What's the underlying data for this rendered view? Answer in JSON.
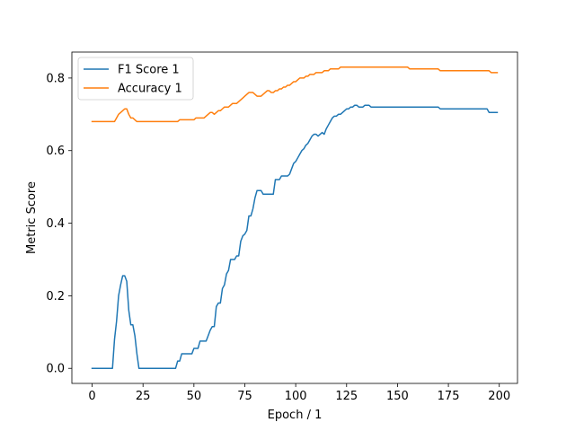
{
  "chart_data": {
    "type": "line",
    "title": "",
    "xlabel": "Epoch / 1",
    "ylabel": "Metric Score",
    "xlim": [
      -9.95,
      208.95
    ],
    "ylim": [
      -0.0415,
      0.8715
    ],
    "xticks": [
      0,
      25,
      50,
      75,
      100,
      125,
      150,
      175,
      200
    ],
    "yticks": [
      0.0,
      0.2,
      0.4,
      0.6,
      0.8
    ],
    "xtick_labels": [
      "0",
      "25",
      "50",
      "75",
      "100",
      "125",
      "150",
      "175",
      "200"
    ],
    "ytick_labels": [
      "0.0",
      "0.2",
      "0.4",
      "0.6",
      "0.8"
    ],
    "grid": false,
    "legend_position": "upper-left",
    "series": [
      {
        "name": "F1 Score 1",
        "color": "#1f77b4",
        "points": [
          [
            0,
            0.0
          ],
          [
            10,
            0.0
          ],
          [
            11,
            0.08
          ],
          [
            12,
            0.13
          ],
          [
            13,
            0.2
          ],
          [
            14,
            0.23
          ],
          [
            15,
            0.255
          ],
          [
            16,
            0.255
          ],
          [
            17,
            0.24
          ],
          [
            18,
            0.16
          ],
          [
            19,
            0.12
          ],
          [
            20,
            0.12
          ],
          [
            21,
            0.09
          ],
          [
            22,
            0.04
          ],
          [
            23,
            0.0
          ],
          [
            24,
            0.0
          ],
          [
            41,
            0.0
          ],
          [
            42,
            0.02
          ],
          [
            43,
            0.02
          ],
          [
            44,
            0.04
          ],
          [
            49,
            0.04
          ],
          [
            50,
            0.055
          ],
          [
            52,
            0.055
          ],
          [
            53,
            0.075
          ],
          [
            56,
            0.075
          ],
          [
            57,
            0.09
          ],
          [
            58,
            0.105
          ],
          [
            59,
            0.115
          ],
          [
            60,
            0.115
          ],
          [
            61,
            0.17
          ],
          [
            62,
            0.18
          ],
          [
            63,
            0.18
          ],
          [
            64,
            0.22
          ],
          [
            65,
            0.23
          ],
          [
            66,
            0.26
          ],
          [
            67,
            0.27
          ],
          [
            68,
            0.3
          ],
          [
            70,
            0.3
          ],
          [
            71,
            0.31
          ],
          [
            72,
            0.31
          ],
          [
            73,
            0.35
          ],
          [
            74,
            0.365
          ],
          [
            75,
            0.37
          ],
          [
            76,
            0.38
          ],
          [
            77,
            0.42
          ],
          [
            78,
            0.42
          ],
          [
            79,
            0.44
          ],
          [
            80,
            0.47
          ],
          [
            81,
            0.49
          ],
          [
            83,
            0.49
          ],
          [
            84,
            0.48
          ],
          [
            89,
            0.48
          ],
          [
            90,
            0.52
          ],
          [
            92,
            0.52
          ],
          [
            93,
            0.53
          ],
          [
            95,
            0.53
          ],
          [
            96,
            0.53
          ],
          [
            97,
            0.535
          ],
          [
            98,
            0.55
          ],
          [
            99,
            0.565
          ],
          [
            100,
            0.57
          ],
          [
            101,
            0.58
          ],
          [
            102,
            0.59
          ],
          [
            103,
            0.6
          ],
          [
            104,
            0.605
          ],
          [
            105,
            0.615
          ],
          [
            106,
            0.62
          ],
          [
            107,
            0.63
          ],
          [
            108,
            0.64
          ],
          [
            109,
            0.645
          ],
          [
            110,
            0.645
          ],
          [
            111,
            0.64
          ],
          [
            112,
            0.645
          ],
          [
            113,
            0.65
          ],
          [
            114,
            0.645
          ],
          [
            115,
            0.66
          ],
          [
            116,
            0.67
          ],
          [
            117,
            0.68
          ],
          [
            118,
            0.69
          ],
          [
            119,
            0.695
          ],
          [
            120,
            0.695
          ],
          [
            121,
            0.7
          ],
          [
            122,
            0.7
          ],
          [
            123,
            0.705
          ],
          [
            124,
            0.71
          ],
          [
            125,
            0.715
          ],
          [
            126,
            0.715
          ],
          [
            127,
            0.72
          ],
          [
            128,
            0.72
          ],
          [
            129,
            0.725
          ],
          [
            130,
            0.725
          ],
          [
            131,
            0.72
          ],
          [
            133,
            0.72
          ],
          [
            134,
            0.725
          ],
          [
            136,
            0.725
          ],
          [
            137,
            0.72
          ],
          [
            170,
            0.72
          ],
          [
            171,
            0.715
          ],
          [
            194,
            0.715
          ],
          [
            195,
            0.705
          ],
          [
            199,
            0.705
          ]
        ]
      },
      {
        "name": "Accuracy 1",
        "color": "#ff7f0e",
        "points": [
          [
            0,
            0.68
          ],
          [
            10,
            0.68
          ],
          [
            11,
            0.68
          ],
          [
            12,
            0.69
          ],
          [
            13,
            0.7
          ],
          [
            14,
            0.705
          ],
          [
            15,
            0.71
          ],
          [
            16,
            0.715
          ],
          [
            17,
            0.715
          ],
          [
            18,
            0.7
          ],
          [
            19,
            0.69
          ],
          [
            20,
            0.69
          ],
          [
            21,
            0.685
          ],
          [
            22,
            0.68
          ],
          [
            41,
            0.68
          ],
          [
            42,
            0.68
          ],
          [
            43,
            0.685
          ],
          [
            50,
            0.685
          ],
          [
            51,
            0.69
          ],
          [
            52,
            0.69
          ],
          [
            53,
            0.69
          ],
          [
            54,
            0.69
          ],
          [
            55,
            0.69
          ],
          [
            56,
            0.695
          ],
          [
            57,
            0.7
          ],
          [
            58,
            0.705
          ],
          [
            59,
            0.705
          ],
          [
            60,
            0.7
          ],
          [
            61,
            0.705
          ],
          [
            62,
            0.71
          ],
          [
            63,
            0.71
          ],
          [
            64,
            0.715
          ],
          [
            65,
            0.72
          ],
          [
            66,
            0.72
          ],
          [
            67,
            0.72
          ],
          [
            68,
            0.725
          ],
          [
            69,
            0.73
          ],
          [
            70,
            0.73
          ],
          [
            71,
            0.73
          ],
          [
            72,
            0.735
          ],
          [
            73,
            0.74
          ],
          [
            74,
            0.745
          ],
          [
            75,
            0.75
          ],
          [
            76,
            0.755
          ],
          [
            77,
            0.76
          ],
          [
            78,
            0.76
          ],
          [
            79,
            0.76
          ],
          [
            80,
            0.755
          ],
          [
            81,
            0.75
          ],
          [
            82,
            0.75
          ],
          [
            83,
            0.75
          ],
          [
            84,
            0.755
          ],
          [
            85,
            0.76
          ],
          [
            86,
            0.765
          ],
          [
            87,
            0.765
          ],
          [
            88,
            0.76
          ],
          [
            89,
            0.76
          ],
          [
            90,
            0.765
          ],
          [
            91,
            0.765
          ],
          [
            92,
            0.77
          ],
          [
            93,
            0.77
          ],
          [
            94,
            0.775
          ],
          [
            95,
            0.775
          ],
          [
            96,
            0.78
          ],
          [
            97,
            0.78
          ],
          [
            98,
            0.785
          ],
          [
            99,
            0.79
          ],
          [
            100,
            0.79
          ],
          [
            101,
            0.795
          ],
          [
            102,
            0.8
          ],
          [
            103,
            0.8
          ],
          [
            104,
            0.8
          ],
          [
            105,
            0.805
          ],
          [
            106,
            0.805
          ],
          [
            107,
            0.81
          ],
          [
            108,
            0.81
          ],
          [
            109,
            0.81
          ],
          [
            110,
            0.815
          ],
          [
            111,
            0.815
          ],
          [
            112,
            0.815
          ],
          [
            113,
            0.815
          ],
          [
            114,
            0.82
          ],
          [
            115,
            0.82
          ],
          [
            116,
            0.82
          ],
          [
            117,
            0.825
          ],
          [
            118,
            0.825
          ],
          [
            119,
            0.825
          ],
          [
            120,
            0.825
          ],
          [
            121,
            0.825
          ],
          [
            122,
            0.83
          ],
          [
            123,
            0.83
          ],
          [
            124,
            0.83
          ],
          [
            125,
            0.83
          ],
          [
            126,
            0.83
          ],
          [
            127,
            0.83
          ],
          [
            128,
            0.83
          ],
          [
            129,
            0.83
          ],
          [
            130,
            0.83
          ],
          [
            131,
            0.83
          ],
          [
            132,
            0.83
          ],
          [
            133,
            0.83
          ],
          [
            134,
            0.83
          ],
          [
            135,
            0.83
          ],
          [
            136,
            0.83
          ],
          [
            137,
            0.83
          ],
          [
            140,
            0.83
          ],
          [
            145,
            0.83
          ],
          [
            150,
            0.83
          ],
          [
            155,
            0.83
          ],
          [
            156,
            0.825
          ],
          [
            157,
            0.825
          ],
          [
            170,
            0.825
          ],
          [
            171,
            0.82
          ],
          [
            195,
            0.82
          ],
          [
            196,
            0.815
          ],
          [
            199,
            0.815
          ]
        ]
      }
    ]
  }
}
